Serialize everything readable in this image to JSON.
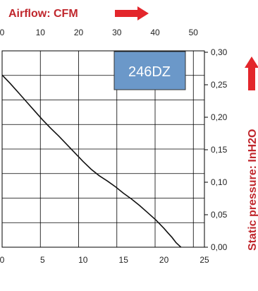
{
  "chart_data": {
    "type": "line",
    "top_axis_title": "Airflow: CFM",
    "right_axis_title": "Static pressure: InH2O",
    "model_label": "246DZ",
    "x_bottom_ticks": [
      "0",
      "5",
      "10",
      "15",
      "20",
      "25"
    ],
    "x_bottom_lim": [
      0,
      25
    ],
    "x_top_ticks": [
      "0",
      "10",
      "20",
      "30",
      "40",
      "50"
    ],
    "x_top_lim": [
      0,
      52.9
    ],
    "y_right_ticks": [
      "0,00",
      "0,05",
      "0,10",
      "0,15",
      "0,20",
      "0,25",
      "0,30"
    ],
    "y_right_lim": [
      0,
      0.315
    ],
    "grid": true,
    "series": [
      {
        "x": [
          0,
          1,
          2,
          3,
          4,
          5,
          6,
          7,
          8,
          9,
          10,
          11,
          12,
          13,
          14,
          15,
          16,
          17,
          18,
          19,
          20,
          20.5,
          21,
          21.5,
          22.1
        ],
        "y": [
          0.265,
          0.252,
          0.238,
          0.224,
          0.21,
          0.196,
          0.183,
          0.171,
          0.158,
          0.145,
          0.132,
          0.12,
          0.11,
          0.102,
          0.093,
          0.083,
          0.074,
          0.064,
          0.053,
          0.042,
          0.029,
          0.022,
          0.015,
          0.007,
          0.0
        ]
      }
    ],
    "colors": {
      "arrow": "#e3262b",
      "title": "#c0272d",
      "model_box": "#6b98c9",
      "curve": "#111111",
      "grid": "#000000"
    }
  }
}
